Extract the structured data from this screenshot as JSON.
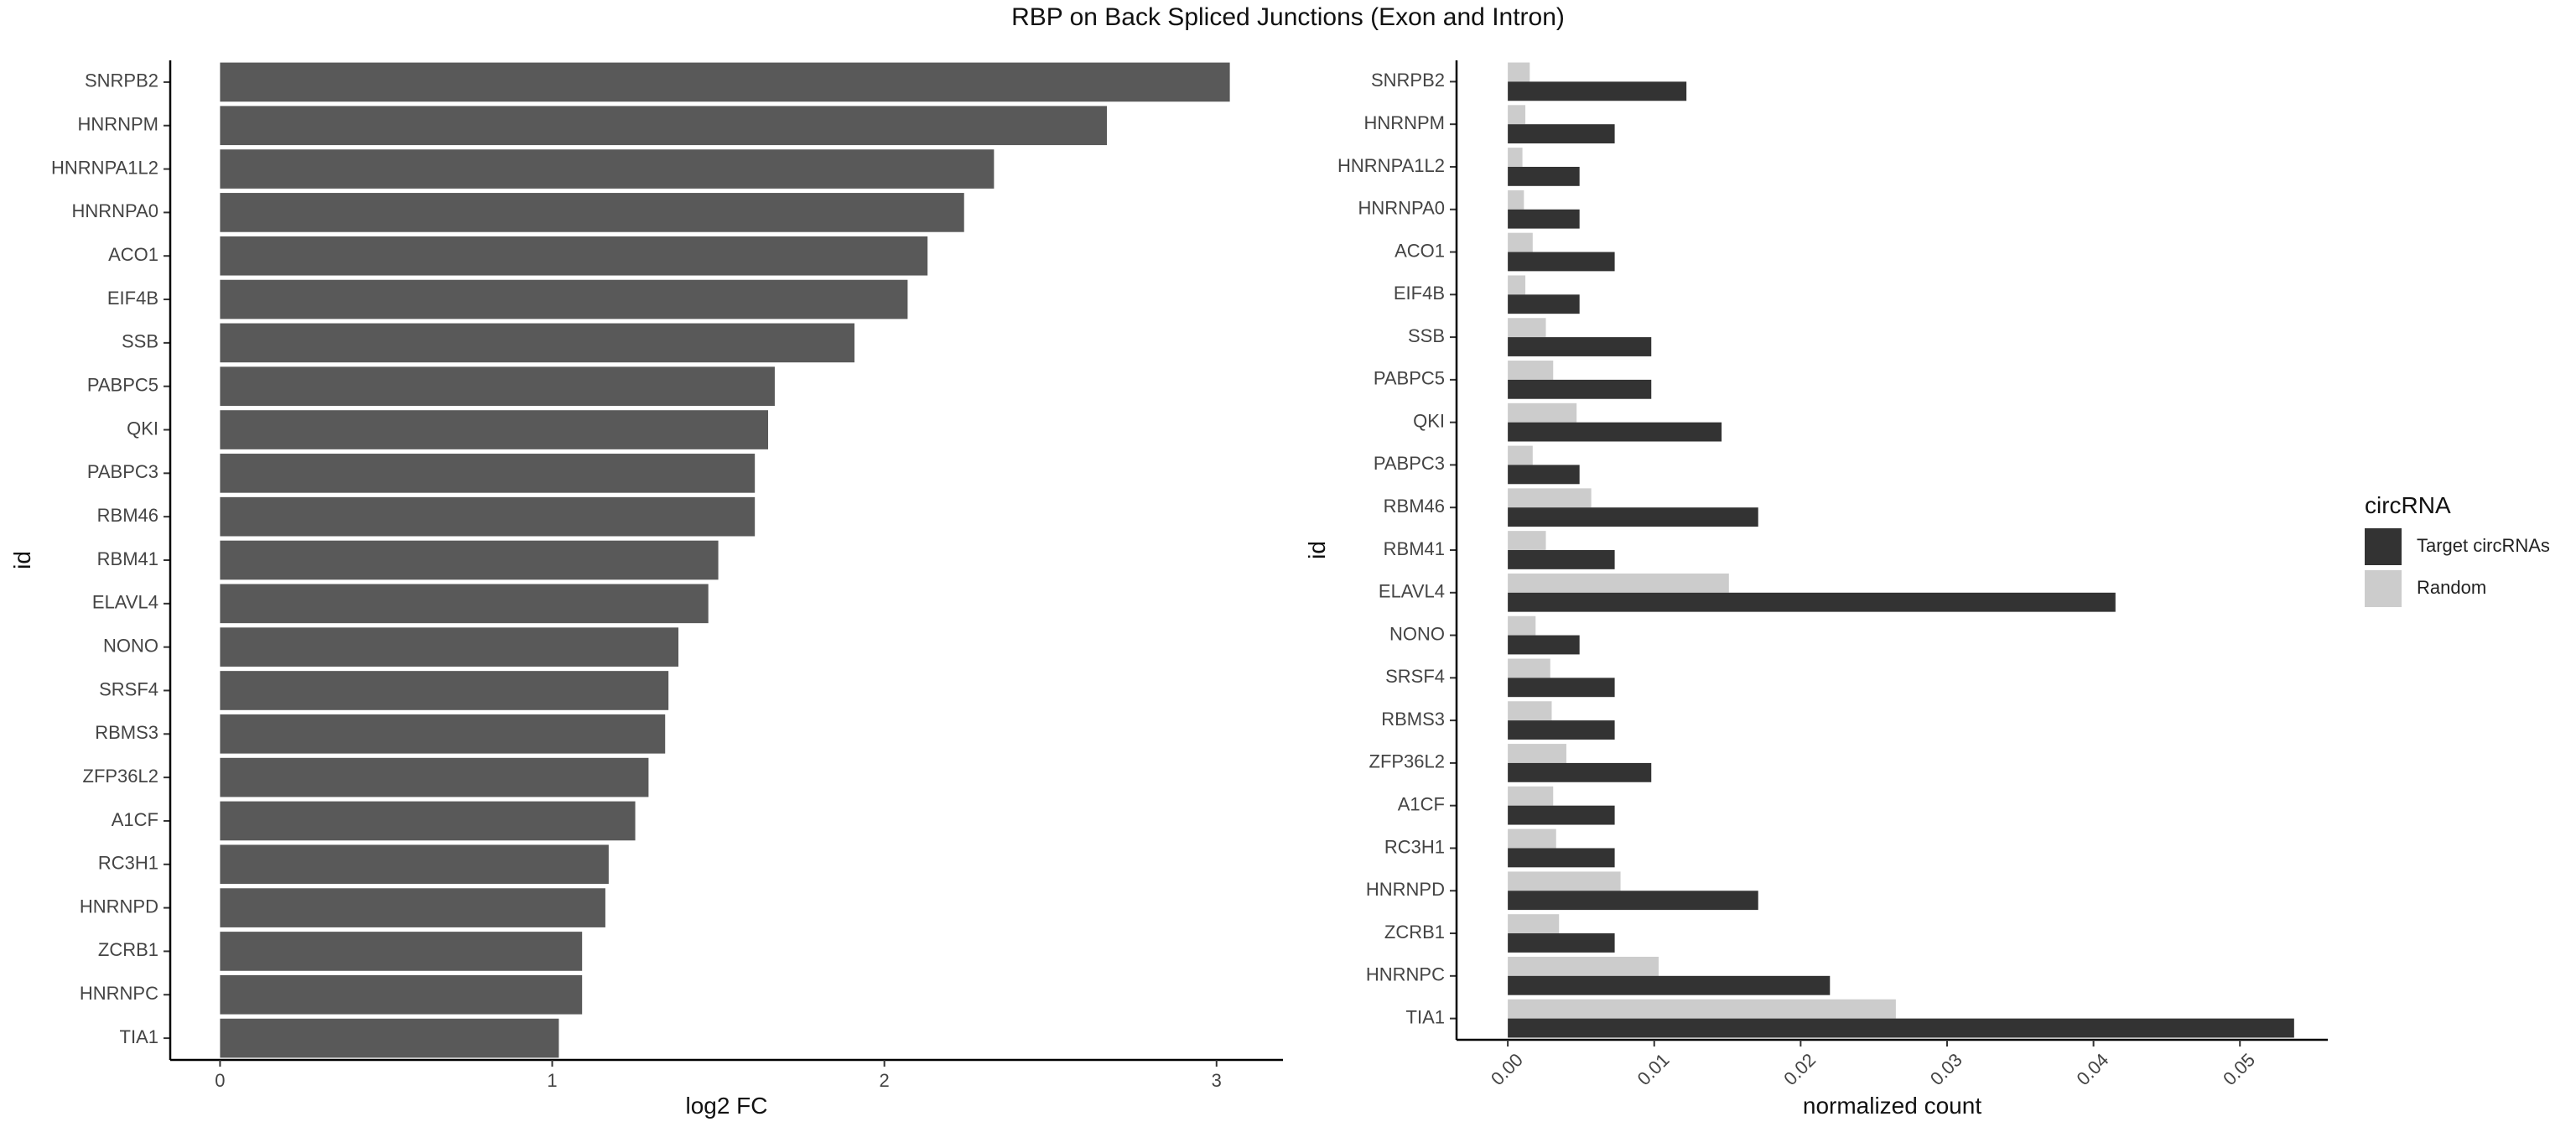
{
  "title": "RBP on Back Spliced Junctions (Exon and Intron)",
  "chart_data": [
    {
      "type": "bar",
      "orientation": "horizontal",
      "categories": [
        "SNRPB2",
        "HNRNPM",
        "HNRNPA1L2",
        "HNRNPA0",
        "ACO1",
        "EIF4B",
        "SSB",
        "PABPC5",
        "QKI",
        "PABPC3",
        "RBM46",
        "RBM41",
        "ELAVL4",
        "NONO",
        "SRSF4",
        "RBMS3",
        "ZFP36L2",
        "A1CF",
        "RC3H1",
        "HNRNPD",
        "ZCRB1",
        "HNRNPC",
        "TIA1"
      ],
      "values": [
        3.04,
        2.67,
        2.33,
        2.24,
        2.13,
        2.07,
        1.91,
        1.67,
        1.65,
        1.61,
        1.61,
        1.5,
        1.47,
        1.38,
        1.35,
        1.34,
        1.29,
        1.25,
        1.17,
        1.16,
        1.09,
        1.09,
        1.02
      ],
      "xlabel": "log2 FC",
      "ylabel": "id",
      "xlim": [
        -0.15,
        3.2
      ],
      "xticks": [
        0,
        1,
        2,
        3
      ],
      "xtick_labels": [
        "0",
        "1",
        "2",
        "3"
      ],
      "bar_color": "#595959",
      "grid": false
    },
    {
      "type": "bar",
      "orientation": "horizontal",
      "grouped": true,
      "categories": [
        "SNRPB2",
        "HNRNPM",
        "HNRNPA1L2",
        "HNRNPA0",
        "ACO1",
        "EIF4B",
        "SSB",
        "PABPC5",
        "QKI",
        "PABPC3",
        "RBM46",
        "RBM41",
        "ELAVL4",
        "NONO",
        "SRSF4",
        "RBMS3",
        "ZFP36L2",
        "A1CF",
        "RC3H1",
        "HNRNPD",
        "ZCRB1",
        "HNRNPC",
        "TIA1"
      ],
      "series": [
        {
          "name": "Target circRNAs",
          "color": "#333333",
          "values": [
            0.0122,
            0.0073,
            0.0049,
            0.0049,
            0.0073,
            0.0049,
            0.0098,
            0.0098,
            0.0146,
            0.0049,
            0.0171,
            0.0073,
            0.0415,
            0.0049,
            0.0073,
            0.0073,
            0.0098,
            0.0073,
            0.0073,
            0.0171,
            0.0073,
            0.022,
            0.0537
          ]
        },
        {
          "name": "Random",
          "color": "#cccccc",
          "values": [
            0.0015,
            0.0012,
            0.001,
            0.0011,
            0.0017,
            0.0012,
            0.0026,
            0.0031,
            0.0047,
            0.0017,
            0.0057,
            0.0026,
            0.0151,
            0.0019,
            0.0029,
            0.003,
            0.004,
            0.0031,
            0.0033,
            0.0077,
            0.0035,
            0.0103,
            0.0265
          ]
        }
      ],
      "xlabel": "normalized count",
      "ylabel": "id",
      "xlim": [
        -0.0035,
        0.056
      ],
      "xticks": [
        0,
        0.01,
        0.02,
        0.03,
        0.04,
        0.05
      ],
      "xtick_labels": [
        "0.00",
        "0.01",
        "0.02",
        "0.03",
        "0.04",
        "0.05"
      ],
      "legend": {
        "title": "circRNA",
        "position": "right",
        "entries": [
          "Target circRNAs",
          "Random"
        ]
      },
      "grid": false
    }
  ]
}
